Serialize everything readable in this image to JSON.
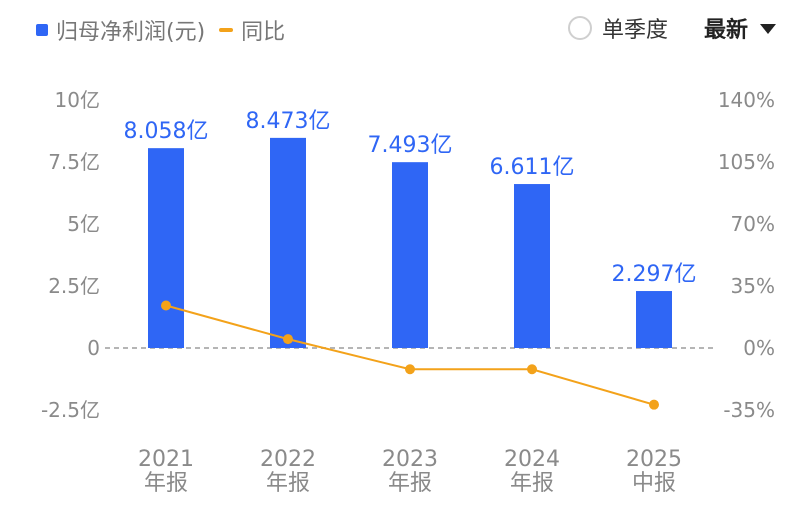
{
  "legend": {
    "bar_label": "归母净利润(元)",
    "line_label": "同比"
  },
  "controls": {
    "radio_label": "单季度",
    "dropdown_value": "最新"
  },
  "colors": {
    "bar": "#2f66f5",
    "line": "#f3a21a",
    "zero_line": "#b5b5b5"
  },
  "chart_data": {
    "type": "bar",
    "categories": [
      [
        "2021",
        "年报"
      ],
      [
        "2022",
        "年报"
      ],
      [
        "2023",
        "年报"
      ],
      [
        "2024",
        "年报"
      ],
      [
        "2025",
        "中报"
      ]
    ],
    "series": [
      {
        "name": "归母净利润(元)",
        "type": "bar",
        "values": [
          8.058,
          8.473,
          7.493,
          6.611,
          2.297
        ],
        "value_labels": [
          "8.058亿",
          "8.473亿",
          "7.493亿",
          "6.611亿",
          "2.297亿"
        ]
      },
      {
        "name": "同比",
        "type": "line",
        "axis": "right",
        "values": [
          24,
          5,
          -12,
          -12,
          -32
        ]
      }
    ],
    "left_axis": {
      "ticks": [
        10,
        7.5,
        5,
        2.5,
        0,
        -2.5
      ],
      "tick_labels": [
        "10亿",
        "7.5亿",
        "5亿",
        "2.5亿",
        "0",
        "-2.5亿"
      ],
      "ylim": [
        -2.5,
        10
      ]
    },
    "right_axis": {
      "ticks": [
        140,
        105,
        70,
        35,
        0,
        -35
      ],
      "tick_labels": [
        "140%",
        "105%",
        "70%",
        "35%",
        "0%",
        "-35%"
      ],
      "ylim": [
        -35,
        140
      ]
    },
    "grid": false,
    "legend_position": "top-left"
  }
}
